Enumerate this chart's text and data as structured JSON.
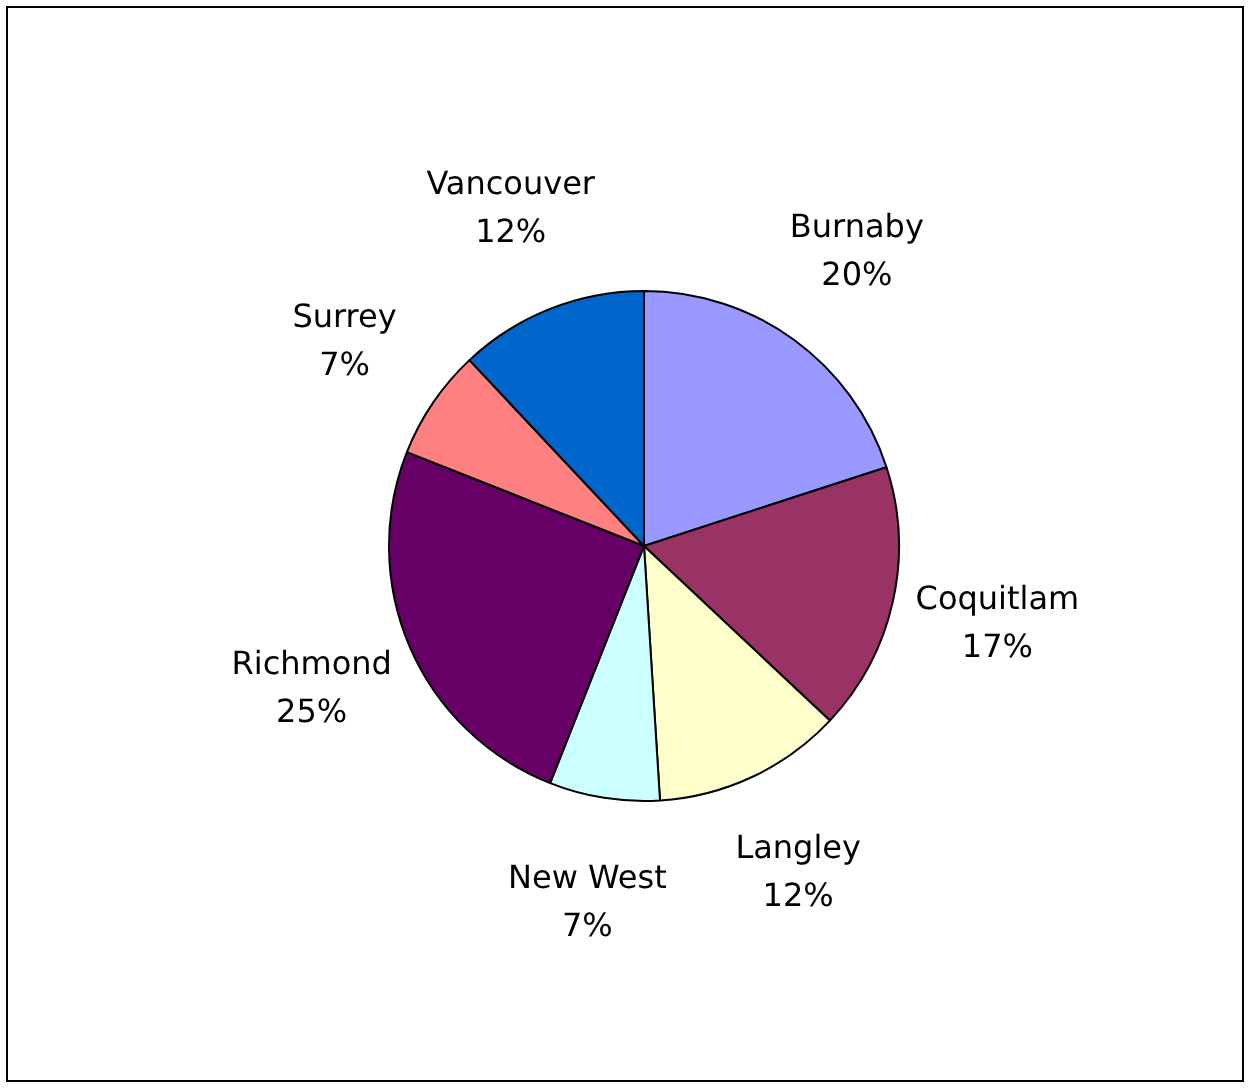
{
  "chart_data": {
    "type": "pie",
    "categories": [
      "Burnaby",
      "Coquitlam",
      "Langley",
      "New West",
      "Richmond",
      "Surrey",
      "Vancouver"
    ],
    "values": [
      20,
      17,
      12,
      7,
      25,
      7,
      12
    ],
    "value_labels": [
      "20%",
      "17%",
      "12%",
      "7%",
      "25%",
      "7%",
      "12%"
    ],
    "colors": [
      "#9999ff",
      "#993366",
      "#ffffcc",
      "#ccffff",
      "#660066",
      "#ff8080",
      "#0066cc"
    ],
    "legend": false
  }
}
